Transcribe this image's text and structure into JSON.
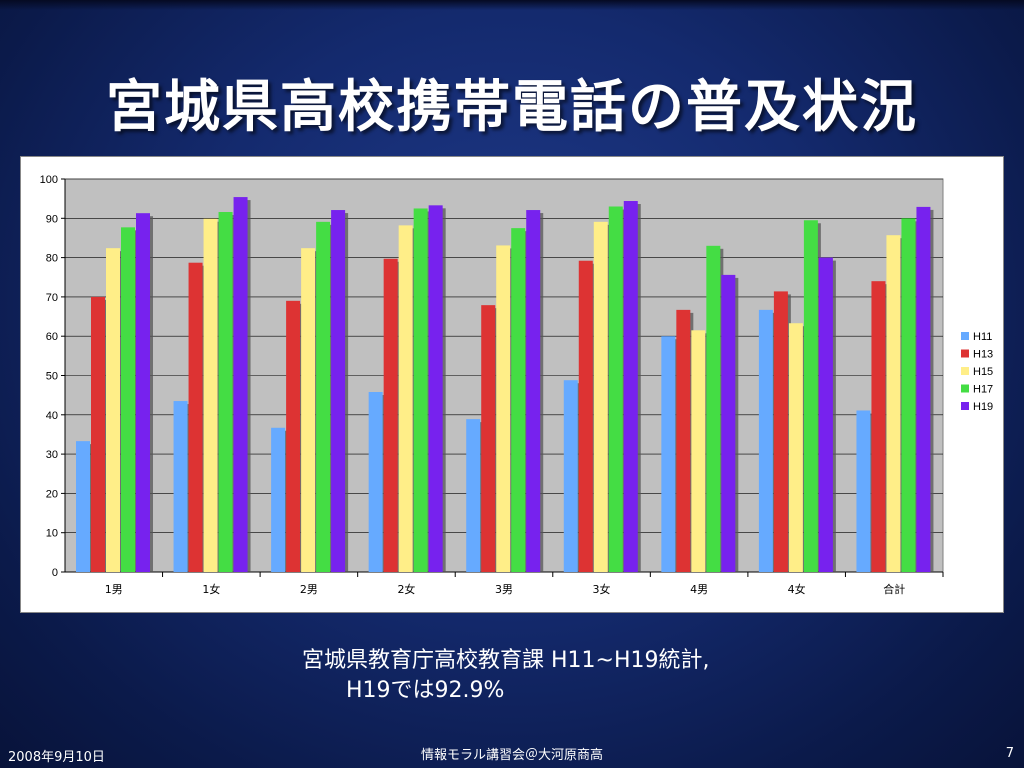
{
  "slide": {
    "title": "宮城県高校携帯電話の普及状況",
    "caption_line1": "宮城県教育庁高校教育課 H11~H19統計,",
    "caption_line2": "H19では92.9%",
    "footer_date": "2008年9月10日",
    "footer_center": "情報モラル講習会＠大河原商高",
    "page_number": "7"
  },
  "chart_data": {
    "type": "bar",
    "categories": [
      "1男",
      "1女",
      "2男",
      "2女",
      "3男",
      "3女",
      "4男",
      "4女",
      "合計"
    ],
    "series": [
      {
        "name": "H11",
        "color": "#66aaff",
        "values": [
          33.3,
          43.5,
          36.7,
          45.8,
          38.9,
          48.8,
          60.0,
          66.7,
          41.1
        ]
      },
      {
        "name": "H13",
        "color": "#dd3333",
        "values": [
          70.0,
          78.7,
          69.0,
          79.7,
          67.9,
          79.2,
          66.7,
          71.4,
          74.0
        ]
      },
      {
        "name": "H15",
        "color": "#ffee88",
        "values": [
          82.4,
          89.9,
          82.4,
          88.2,
          83.1,
          89.1,
          61.5,
          63.3,
          85.7
        ]
      },
      {
        "name": "H17",
        "color": "#44dd44",
        "values": [
          87.7,
          91.6,
          89.1,
          92.5,
          87.5,
          93.0,
          83.0,
          89.5,
          90.0
        ]
      },
      {
        "name": "H19",
        "color": "#7722ee",
        "values": [
          91.3,
          95.4,
          92.1,
          93.3,
          92.1,
          94.4,
          75.6,
          80.0,
          92.9
        ]
      }
    ],
    "y_ticks": [
      "0",
      "10",
      "20",
      "30",
      "40",
      "50",
      "60",
      "70",
      "80",
      "90",
      "100"
    ],
    "ylim": [
      0,
      100
    ],
    "grid": true,
    "legend_position": "right"
  }
}
